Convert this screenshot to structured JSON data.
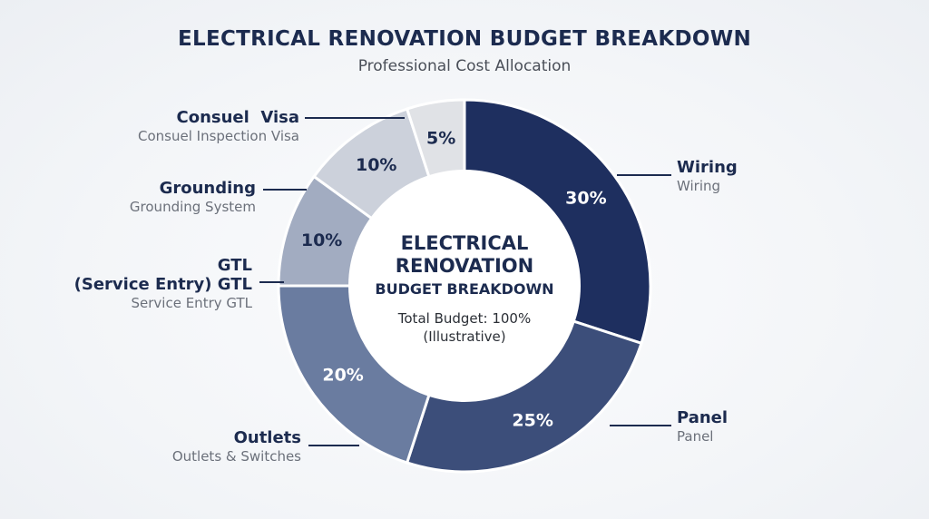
{
  "title": "ELECTRICAL RENOVATION BUDGET BREAKDOWN",
  "subtitle": "Professional Cost Allocation",
  "center": {
    "line1": "ELECTRICAL",
    "line2": "RENOVATION",
    "line3": "BUDGET BREAKDOWN",
    "line4": "Total Budget: 100%",
    "line5": "(Illustrative)"
  },
  "colors": {
    "wiring": "#1e2f5f",
    "panel": "#3c4e7a",
    "outlets": "#6a7ca0",
    "gtl": "#a2acc1",
    "grounding": "#ccd1db",
    "consuel": "#e0e2e6",
    "label_dark": "#1c2b4f",
    "label_light": "#ffffff"
  },
  "chart_data": {
    "type": "pie",
    "title": "ELECTRICAL RENOVATION BUDGET BREAKDOWN",
    "subtitle": "Professional Cost Allocation",
    "slices": [
      {
        "key": "wiring",
        "label": "Wiring",
        "description": "Wiring",
        "value": 30,
        "value_label": "30%"
      },
      {
        "key": "panel",
        "label": "Panel",
        "description": "Panel",
        "value": 25,
        "value_label": "25%"
      },
      {
        "key": "outlets",
        "label": "Outlets",
        "description": "Outlets & Switches",
        "value": 20,
        "value_label": "20%"
      },
      {
        "key": "gtl",
        "label": "GTL (Service Entry) GTL",
        "label_line1": "GTL",
        "label_line2": "(Service Entry) GTL",
        "description": "Service Entry GTL",
        "value": 10,
        "value_label": "10%"
      },
      {
        "key": "grounding",
        "label": "Grounding",
        "description": "Grounding System",
        "value": 10,
        "value_label": "10%"
      },
      {
        "key": "consuel",
        "label": "Consuel  Visa",
        "description": "Consuel Inspection Visa",
        "value": 5,
        "value_label": "5%"
      }
    ]
  }
}
